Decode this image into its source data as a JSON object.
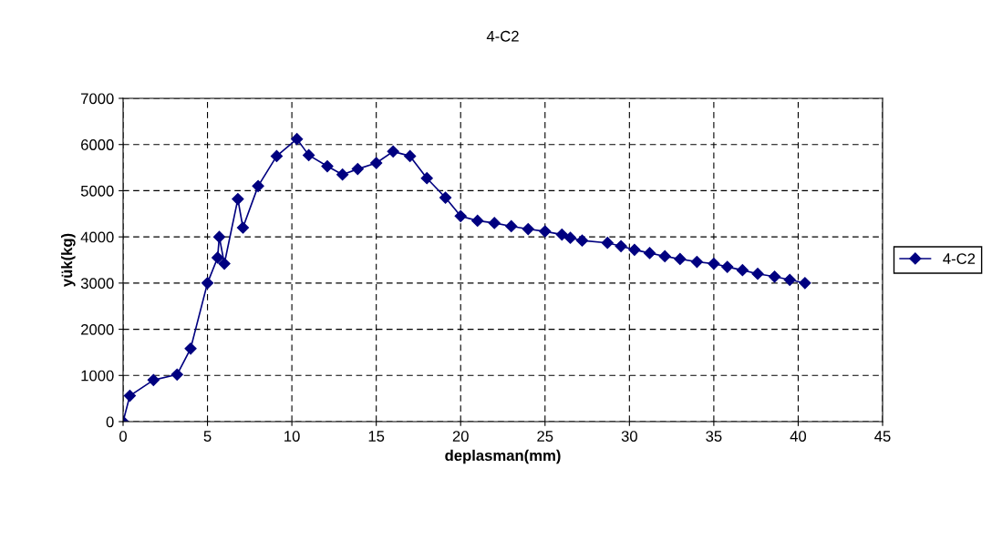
{
  "chart_data": {
    "type": "line",
    "title": "4-C2",
    "xlabel": "deplasman(mm)",
    "ylabel": "yük(kg)",
    "xlim": [
      0,
      45
    ],
    "xticks": [
      0,
      5,
      10,
      15,
      20,
      25,
      30,
      35,
      40,
      45
    ],
    "ylim": [
      0,
      7000
    ],
    "yticks": [
      0,
      1000,
      2000,
      3000,
      4000,
      5000,
      6000,
      7000
    ],
    "grid": true,
    "legend": "right",
    "marker": "diamond",
    "line_style": "solid",
    "series": [
      {
        "name": "4-C2",
        "color": "#000080",
        "x": [
          0,
          0.4,
          1.8,
          3.2,
          4.0,
          5.0,
          5.6,
          5.7,
          6.0,
          6.8,
          7.1,
          8.0,
          9.1,
          10.3,
          11.0,
          12.1,
          13.0,
          13.9,
          15.0,
          16.0,
          17.0,
          18.0,
          19.1,
          20.0,
          21.0,
          22.0,
          23.0,
          24.0,
          25.0,
          26.0,
          26.5,
          27.2,
          28.7,
          29.5,
          30.3,
          31.2,
          32.1,
          33.0,
          34.0,
          35.0,
          35.8,
          36.7,
          37.6,
          38.6,
          39.5,
          40.4
        ],
        "values": [
          0,
          560,
          900,
          1020,
          1580,
          3000,
          3550,
          4000,
          3420,
          4820,
          4200,
          5100,
          5750,
          6120,
          5770,
          5530,
          5350,
          5470,
          5600,
          5850,
          5750,
          5270,
          4850,
          4450,
          4350,
          4300,
          4230,
          4170,
          4120,
          4050,
          3980,
          3920,
          3870,
          3800,
          3720,
          3650,
          3580,
          3520,
          3460,
          3420,
          3350,
          3280,
          3200,
          3140,
          3070,
          3000
        ]
      }
    ]
  }
}
